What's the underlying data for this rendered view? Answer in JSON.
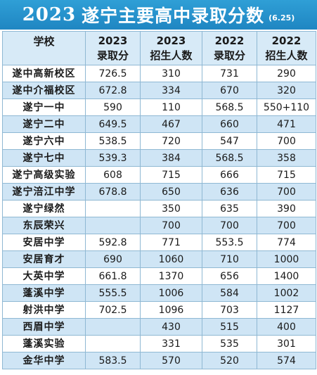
{
  "banner": {
    "year": "2023",
    "title": "遂宁主要高中录取分数",
    "date": "(6.25)"
  },
  "table": {
    "headers": {
      "school": "学校",
      "c1_year": "2023",
      "c1_label": "录取分",
      "c2_year": "2023",
      "c2_label": "招生人数",
      "c3_year": "2022",
      "c3_label": "录取分",
      "c4_year": "2022",
      "c4_label": "招生人数"
    },
    "rows": [
      {
        "school": "遂中高新校区",
        "score_2023": "726.5",
        "enroll_2023": "310",
        "score_2022": "731",
        "enroll_2022": "290"
      },
      {
        "school": "遂中介福校区",
        "score_2023": "672.8",
        "enroll_2023": "334",
        "score_2022": "670",
        "enroll_2022": "320"
      },
      {
        "school": "遂宁一中",
        "score_2023": "590",
        "enroll_2023": "110",
        "score_2022": "568.5",
        "enroll_2022": "550+110"
      },
      {
        "school": "遂宁二中",
        "score_2023": "649.5",
        "enroll_2023": "467",
        "score_2022": "660",
        "enroll_2022": "471"
      },
      {
        "school": "遂宁六中",
        "score_2023": "538.5",
        "enroll_2023": "720",
        "score_2022": "547",
        "enroll_2022": "700"
      },
      {
        "school": "遂宁七中",
        "score_2023": "539.3",
        "enroll_2023": "384",
        "score_2022": "568.5",
        "enroll_2022": "358"
      },
      {
        "school": "遂宁高级实验",
        "score_2023": "608",
        "enroll_2023": "715",
        "score_2022": "666",
        "enroll_2022": "715"
      },
      {
        "school": "遂宁涪江中学",
        "score_2023": "678.8",
        "enroll_2023": "650",
        "score_2022": "636",
        "enroll_2022": "700"
      },
      {
        "school": "遂宁绿然",
        "score_2023": "",
        "enroll_2023": "350",
        "score_2022": "635",
        "enroll_2022": "390"
      },
      {
        "school": "东辰荣兴",
        "score_2023": "",
        "enroll_2023": "700",
        "score_2022": "700",
        "enroll_2022": "700"
      },
      {
        "school": "安居中学",
        "score_2023": "592.8",
        "enroll_2023": "771",
        "score_2022": "553.5",
        "enroll_2022": "774"
      },
      {
        "school": "安居育才",
        "score_2023": "690",
        "enroll_2023": "1060",
        "score_2022": "710",
        "enroll_2022": "1000"
      },
      {
        "school": "大英中学",
        "score_2023": "661.8",
        "enroll_2023": "1370",
        "score_2022": "656",
        "enroll_2022": "1400"
      },
      {
        "school": "蓬溪中学",
        "score_2023": "555.5",
        "enroll_2023": "1006",
        "score_2022": "584",
        "enroll_2022": "1002"
      },
      {
        "school": "射洪中学",
        "score_2023": "702.5",
        "enroll_2023": "1096",
        "score_2022": "703",
        "enroll_2022": "1127"
      },
      {
        "school": "西眉中学",
        "score_2023": "",
        "enroll_2023": "430",
        "score_2022": "515",
        "enroll_2022": "400"
      },
      {
        "school": "蓬溪实验",
        "score_2023": "",
        "enroll_2023": "331",
        "score_2022": "535",
        "enroll_2022": "301"
      },
      {
        "school": "金华中学",
        "score_2023": "583.5",
        "enroll_2023": "570",
        "score_2022": "520",
        "enroll_2022": "574"
      }
    ]
  }
}
